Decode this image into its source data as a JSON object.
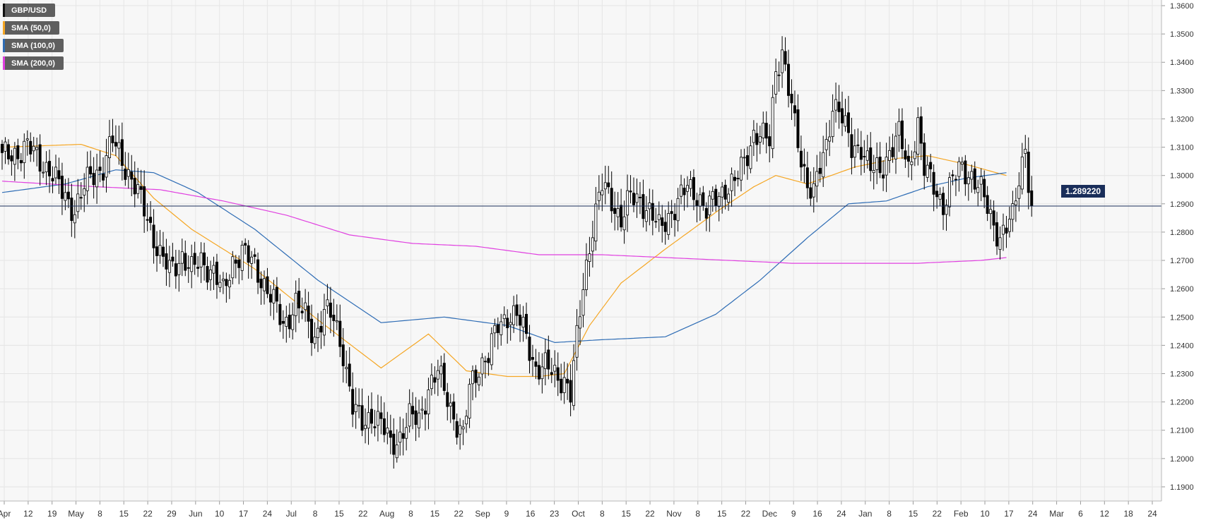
{
  "legend": [
    {
      "label": "GBP/USD",
      "color": "#111111"
    },
    {
      "label": "SMA (50,0)",
      "color": "#f5a623"
    },
    {
      "label": "SMA (100,0)",
      "color": "#2f6db5"
    },
    {
      "label": "SMA (200,0)",
      "color": "#e040e0"
    }
  ],
  "price_tag": "1.289220",
  "chart_data": {
    "type": "candlestick",
    "symbol": "GBP/USD",
    "ylim": [
      1.185,
      1.362
    ],
    "yticks": [
      1.19,
      1.2,
      1.21,
      1.22,
      1.23,
      1.24,
      1.25,
      1.26,
      1.27,
      1.28,
      1.29,
      1.3,
      1.31,
      1.32,
      1.33,
      1.34,
      1.35,
      1.36
    ],
    "ytick_labels": [
      "1.1900",
      "1.2000",
      "1.2100",
      "1.2200",
      "1.2300",
      "1.2400",
      "1.2500",
      "1.2600",
      "1.2700",
      "1.2800",
      "1.2900",
      "1.3000",
      "1.3100",
      "1.3200",
      "1.3300",
      "1.3400",
      "1.3500",
      "1.3600"
    ],
    "xtick_labels": [
      "Apr",
      "12",
      "19",
      "May",
      "8",
      "15",
      "22",
      "29",
      "Jun",
      "10",
      "17",
      "24",
      "Jul",
      "8",
      "15",
      "22",
      "Aug",
      "8",
      "15",
      "22",
      "Sep",
      "9",
      "16",
      "23",
      "Oct",
      "8",
      "15",
      "22",
      "Nov",
      "8",
      "15",
      "22",
      "Dec",
      "9",
      "16",
      "24",
      "Jan",
      "8",
      "15",
      "22",
      "Feb",
      "10",
      "17",
      "24",
      "Mar",
      "6",
      "12",
      "18",
      "24"
    ],
    "current_price": 1.28922,
    "close_anchors": [
      [
        0,
        1.306
      ],
      [
        8,
        1.31
      ],
      [
        15,
        1.302
      ],
      [
        19,
        1.294
      ],
      [
        23,
        1.288
      ],
      [
        28,
        1.3
      ],
      [
        32,
        1.303
      ],
      [
        35,
        1.312
      ],
      [
        38,
        1.306
      ],
      [
        42,
        1.296
      ],
      [
        46,
        1.285
      ],
      [
        50,
        1.272
      ],
      [
        53,
        1.266
      ],
      [
        57,
        1.272
      ],
      [
        60,
        1.266
      ],
      [
        63,
        1.27
      ],
      [
        67,
        1.266
      ],
      [
        70,
        1.258
      ],
      [
        73,
        1.27
      ],
      [
        76,
        1.273
      ],
      [
        80,
        1.268
      ],
      [
        83,
        1.262
      ],
      [
        86,
        1.255
      ],
      [
        89,
        1.247
      ],
      [
        93,
        1.255
      ],
      [
        96,
        1.25
      ],
      [
        99,
        1.243
      ],
      [
        102,
        1.252
      ],
      [
        105,
        1.249
      ],
      [
        108,
        1.238
      ],
      [
        111,
        1.218
      ],
      [
        114,
        1.212
      ],
      [
        117,
        1.216
      ],
      [
        120,
        1.212
      ],
      [
        123,
        1.205
      ],
      [
        126,
        1.208
      ],
      [
        129,
        1.214
      ],
      [
        132,
        1.214
      ],
      [
        135,
        1.225
      ],
      [
        138,
        1.23
      ],
      [
        141,
        1.222
      ],
      [
        144,
        1.212
      ],
      [
        146,
        1.207
      ],
      [
        148,
        1.225
      ],
      [
        151,
        1.233
      ],
      [
        154,
        1.236
      ],
      [
        157,
        1.247
      ],
      [
        160,
        1.251
      ],
      [
        163,
        1.25
      ],
      [
        166,
        1.243
      ],
      [
        169,
        1.232
      ],
      [
        172,
        1.232
      ],
      [
        175,
        1.23
      ],
      [
        178,
        1.228
      ],
      [
        180,
        1.222
      ],
      [
        182,
        1.242
      ],
      [
        184,
        1.262
      ],
      [
        187,
        1.282
      ],
      [
        190,
        1.296
      ],
      [
        193,
        1.292
      ],
      [
        196,
        1.284
      ],
      [
        199,
        1.292
      ],
      [
        202,
        1.292
      ],
      [
        205,
        1.287
      ],
      [
        208,
        1.281
      ],
      [
        211,
        1.286
      ],
      [
        214,
        1.29
      ],
      [
        217,
        1.296
      ],
      [
        220,
        1.294
      ],
      [
        223,
        1.287
      ],
      [
        226,
        1.292
      ],
      [
        229,
        1.296
      ],
      [
        232,
        1.297
      ],
      [
        235,
        1.305
      ],
      [
        238,
        1.315
      ],
      [
        241,
        1.313
      ],
      [
        243,
        1.312
      ],
      [
        245,
        1.338
      ],
      [
        247,
        1.344
      ],
      [
        249,
        1.33
      ],
      [
        251,
        1.317
      ],
      [
        253,
        1.306
      ],
      [
        255,
        1.298
      ],
      [
        257,
        1.294
      ],
      [
        259,
        1.302
      ],
      [
        261,
        1.31
      ],
      [
        263,
        1.326
      ],
      [
        265,
        1.324
      ],
      [
        267,
        1.316
      ],
      [
        269,
        1.309
      ],
      [
        272,
        1.311
      ],
      [
        275,
        1.302
      ],
      [
        278,
        1.301
      ],
      [
        281,
        1.309
      ],
      [
        284,
        1.314
      ],
      [
        287,
        1.302
      ],
      [
        290,
        1.319
      ],
      [
        292,
        1.302
      ],
      [
        295,
        1.296
      ],
      [
        298,
        1.29
      ],
      [
        301,
        1.298
      ],
      [
        304,
        1.303
      ],
      [
        307,
        1.3
      ],
      [
        310,
        1.294
      ],
      [
        313,
        1.286
      ],
      [
        316,
        1.278
      ],
      [
        318,
        1.281
      ],
      [
        320,
        1.285
      ],
      [
        322,
        1.3
      ],
      [
        324,
        1.311
      ],
      [
        325,
        1.298
      ],
      [
        326,
        1.29
      ]
    ],
    "sma50_anchors": [
      [
        0,
        1.31
      ],
      [
        25,
        1.311
      ],
      [
        36,
        1.307
      ],
      [
        48,
        1.292
      ],
      [
        60,
        1.281
      ],
      [
        80,
        1.267
      ],
      [
        100,
        1.249
      ],
      [
        120,
        1.232
      ],
      [
        135,
        1.244
      ],
      [
        147,
        1.231
      ],
      [
        160,
        1.229
      ],
      [
        170,
        1.229
      ],
      [
        178,
        1.23
      ],
      [
        186,
        1.247
      ],
      [
        196,
        1.262
      ],
      [
        210,
        1.274
      ],
      [
        226,
        1.287
      ],
      [
        238,
        1.296
      ],
      [
        245,
        1.3
      ],
      [
        255,
        1.297
      ],
      [
        270,
        1.303
      ],
      [
        283,
        1.306
      ],
      [
        293,
        1.307
      ],
      [
        305,
        1.304
      ],
      [
        318,
        1.3
      ]
    ],
    "sma100_anchors": [
      [
        0,
        1.294
      ],
      [
        20,
        1.297
      ],
      [
        36,
        1.302
      ],
      [
        48,
        1.301
      ],
      [
        62,
        1.294
      ],
      [
        80,
        1.281
      ],
      [
        100,
        1.263
      ],
      [
        120,
        1.248
      ],
      [
        140,
        1.25
      ],
      [
        160,
        1.247
      ],
      [
        175,
        1.241
      ],
      [
        190,
        1.242
      ],
      [
        210,
        1.243
      ],
      [
        226,
        1.251
      ],
      [
        240,
        1.263
      ],
      [
        255,
        1.278
      ],
      [
        268,
        1.29
      ],
      [
        280,
        1.291
      ],
      [
        293,
        1.296
      ],
      [
        305,
        1.299
      ],
      [
        318,
        1.301
      ]
    ],
    "sma200_anchors": [
      [
        0,
        1.298
      ],
      [
        30,
        1.296
      ],
      [
        50,
        1.295
      ],
      [
        70,
        1.291
      ],
      [
        90,
        1.286
      ],
      [
        110,
        1.279
      ],
      [
        130,
        1.276
      ],
      [
        150,
        1.275
      ],
      [
        170,
        1.272
      ],
      [
        190,
        1.272
      ],
      [
        210,
        1.271
      ],
      [
        230,
        1.27
      ],
      [
        250,
        1.269
      ],
      [
        270,
        1.269
      ],
      [
        290,
        1.269
      ],
      [
        310,
        1.27
      ],
      [
        318,
        1.271
      ]
    ]
  }
}
